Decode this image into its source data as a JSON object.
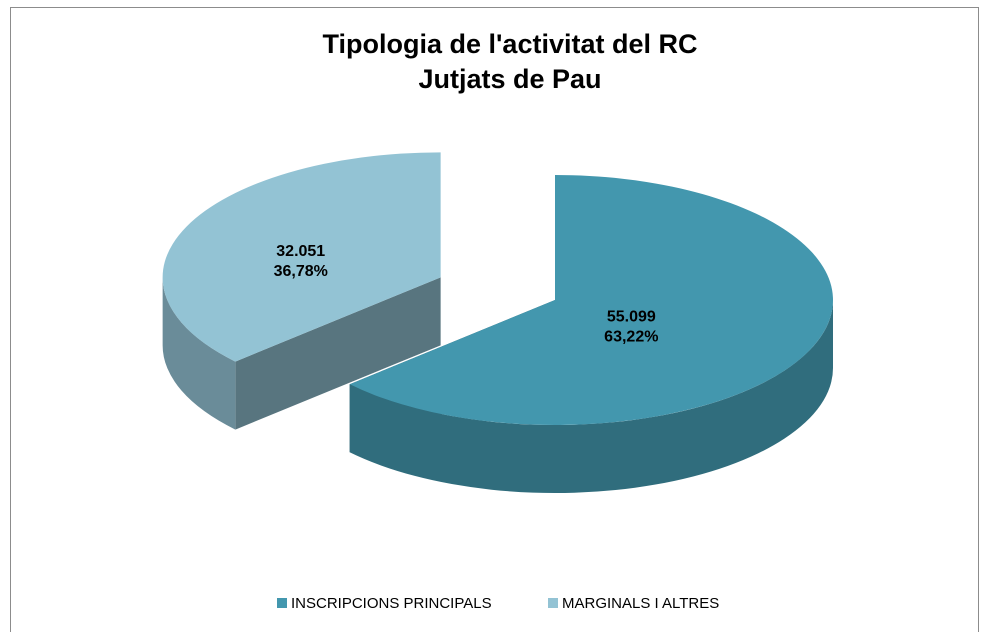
{
  "chart_data": {
    "type": "pie",
    "title": "Tipologia de l'activitat del RC",
    "subtitle": "Jutjats de Pau",
    "categories": [
      "INSCRIPCIONS PRINCIPALS",
      "MARGINALS I ALTRES"
    ],
    "values": [
      55099,
      32051
    ],
    "value_labels": [
      "55.099",
      "32.051"
    ],
    "percentages": [
      63.22,
      36.78
    ],
    "percentage_labels": [
      "63,22%",
      "36,78%"
    ],
    "colors": [
      "#4397ae",
      "#93c3d4"
    ],
    "legend": "bottom"
  }
}
